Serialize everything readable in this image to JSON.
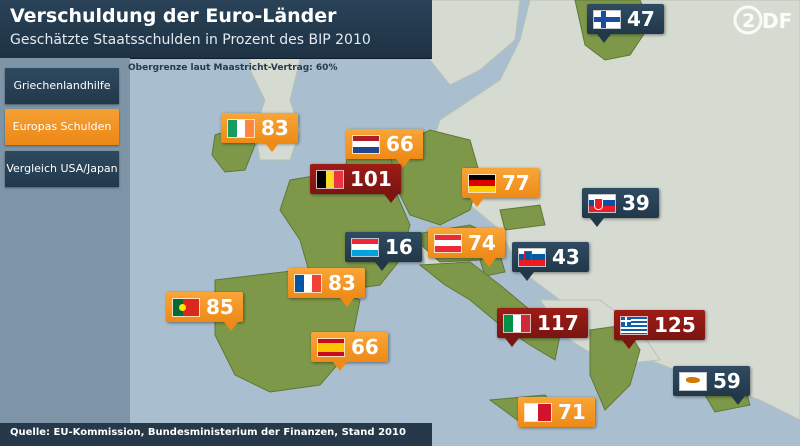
{
  "header": {
    "title": "Verschuldung der Euro-Länder",
    "subtitle": "Geschätzte Staatsschulden in Prozent des BIP 2010"
  },
  "sidebar": {
    "items": [
      {
        "label": "Griechenlandhilfe"
      },
      {
        "label": "Europas Schulden"
      },
      {
        "label": "Vergleich USA/Japan"
      }
    ]
  },
  "note": "Obergrenze laut Maastricht-Vertrag: 60%",
  "footer": "Quelle: EU-Kommission, Bundesministerium der Finanzen, Stand 2010",
  "logo_text": "ZDF",
  "colors": {
    "above_limit": "#ee8a17",
    "below_limit": "#213849",
    "over_100": "#7a1512",
    "land": "#7e9849",
    "non_euro_land": "#d6dbd2",
    "sea": "#a9bfcf"
  },
  "countries": [
    {
      "code": "FI",
      "flag": "finland-flag",
      "value": "47"
    },
    {
      "code": "IE",
      "flag": "ireland-flag",
      "value": "83"
    },
    {
      "code": "NL",
      "flag": "netherlands-flag",
      "value": "66"
    },
    {
      "code": "BE",
      "flag": "belgium-flag",
      "value": "101"
    },
    {
      "code": "DE",
      "flag": "germany-flag",
      "value": "77"
    },
    {
      "code": "SK",
      "flag": "slovakia-flag",
      "value": "39"
    },
    {
      "code": "LU",
      "flag": "luxembourg-flag",
      "value": "16"
    },
    {
      "code": "AT",
      "flag": "austria-flag",
      "value": "74"
    },
    {
      "code": "SI",
      "flag": "slovenia-flag",
      "value": "43"
    },
    {
      "code": "FR",
      "flag": "france-flag",
      "value": "83"
    },
    {
      "code": "PT",
      "flag": "portugal-flag",
      "value": "85"
    },
    {
      "code": "IT",
      "flag": "italy-flag",
      "value": "117"
    },
    {
      "code": "GR",
      "flag": "greece-flag",
      "value": "125"
    },
    {
      "code": "ES",
      "flag": "spain-flag",
      "value": "66"
    },
    {
      "code": "CY",
      "flag": "cyprus-flag",
      "value": "59"
    },
    {
      "code": "MT",
      "flag": "malta-flag",
      "value": "71"
    }
  ]
}
